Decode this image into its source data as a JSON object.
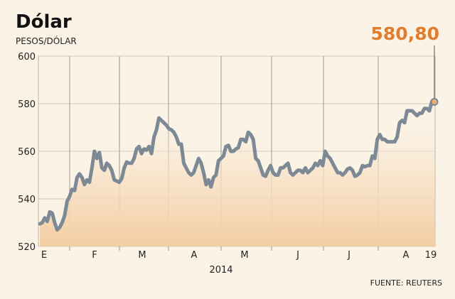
{
  "chart_data": {
    "type": "area",
    "title": "Dólar",
    "ylabel": "PESOS/DÓLAR",
    "ylim": [
      520,
      600
    ],
    "yticks": [
      520,
      540,
      560,
      580,
      600
    ],
    "xlabel": "2014",
    "month_labels": [
      "E",
      "F",
      "M",
      "A",
      "M",
      "J",
      "J",
      "A",
      "19"
    ],
    "last_value_label": "580,80",
    "last_value": 580.8,
    "source": "FUENTE: REUTERS",
    "grid": true,
    "series": [
      {
        "values": [
          529.5,
          530,
          532,
          530.5,
          534.5,
          534,
          530,
          527,
          528,
          530,
          533,
          539,
          541,
          544,
          543.5,
          549,
          550.5,
          549,
          546,
          548,
          547,
          553,
          560,
          557,
          559.5,
          553,
          552,
          555,
          554,
          552,
          548,
          547.5,
          547,
          548.5,
          553,
          555.5,
          555,
          555,
          557,
          561,
          562,
          559,
          561,
          560.5,
          562,
          559,
          566,
          569,
          574,
          573,
          572,
          571,
          569.5,
          569,
          568,
          566,
          563,
          563,
          555,
          553,
          551,
          550,
          551,
          554,
          557,
          555,
          551,
          546,
          548,
          545,
          549,
          550,
          556,
          557,
          558,
          562,
          562.5,
          560,
          560,
          561,
          561.5,
          565,
          565,
          564,
          568,
          567,
          565,
          557,
          556,
          553,
          550,
          549.5,
          552,
          554,
          551,
          550,
          550,
          553,
          553,
          554,
          555,
          551,
          550,
          551,
          552,
          552,
          551,
          553,
          551,
          552,
          553,
          555,
          554,
          556,
          554,
          560,
          558,
          557,
          555,
          553,
          551,
          551,
          550,
          551,
          552.5,
          553,
          552,
          549.5,
          550,
          551,
          554,
          553.5,
          554,
          554,
          558,
          557,
          565,
          567,
          565,
          565,
          564,
          564,
          564,
          564,
          566,
          572,
          573,
          572,
          577,
          577,
          577,
          576,
          575,
          576,
          576,
          578,
          578,
          577,
          581,
          580.8
        ]
      }
    ]
  }
}
